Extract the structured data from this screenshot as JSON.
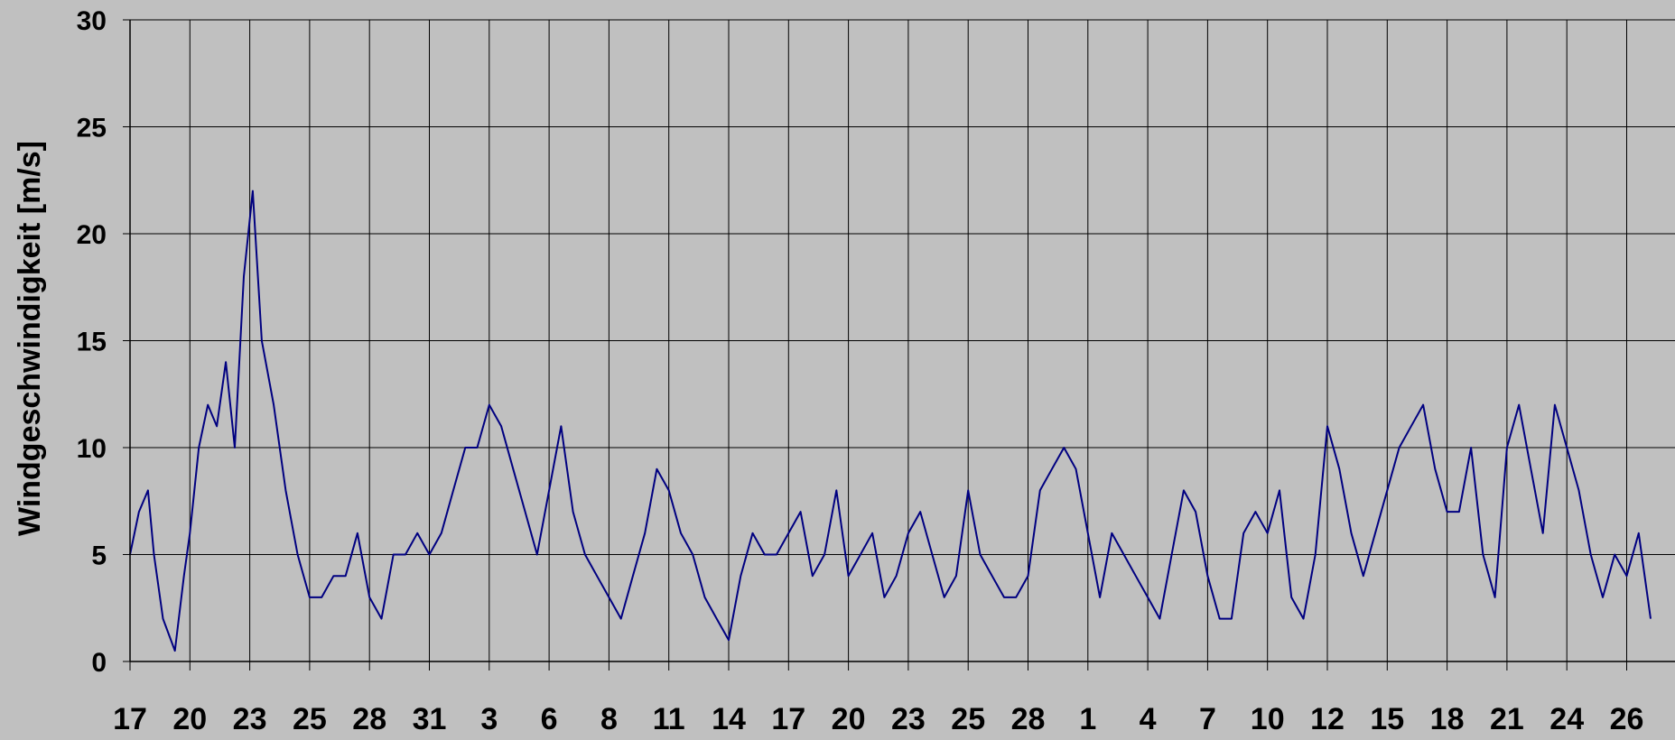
{
  "chart_data": {
    "type": "line",
    "title": "",
    "xlabel": "",
    "ylabel": "Windgeschwindigkeit [m/s]",
    "ylim": [
      0,
      30
    ],
    "yticks": [
      0,
      5,
      10,
      15,
      20,
      25,
      30
    ],
    "x_tick_labels": [
      "17",
      "20",
      "23",
      "25",
      "28",
      "31",
      "3",
      "6",
      "8",
      "11",
      "14",
      "17",
      "20",
      "23",
      "25",
      "28",
      "1",
      "4",
      "7",
      "10",
      "12",
      "15",
      "18",
      "21",
      "24",
      "26"
    ],
    "grid": true,
    "legend": "none",
    "series": [
      {
        "color": "#000080",
        "tick_index": [
          0,
          0.15,
          0.3,
          0.4,
          0.55,
          0.75,
          0.9,
          1.0,
          1.15,
          1.3,
          1.45,
          1.6,
          1.75,
          1.9,
          2.05,
          2.2,
          2.4,
          2.6,
          2.8,
          3.0,
          3.2,
          3.4,
          3.6,
          3.8,
          4.0,
          4.2,
          4.4,
          4.6,
          4.8,
          5.0,
          5.2,
          5.4,
          5.6,
          5.8,
          6.0,
          6.2,
          6.4,
          6.6,
          6.8,
          7.0,
          7.2,
          7.4,
          7.6,
          7.8,
          8.0,
          8.2,
          8.4,
          8.6,
          8.8,
          9.0,
          9.2,
          9.4,
          9.6,
          9.8,
          10.0,
          10.2,
          10.4,
          10.6,
          10.8,
          11.0,
          11.2,
          11.4,
          11.6,
          11.8,
          12.0,
          12.2,
          12.4,
          12.6,
          12.8,
          13.0,
          13.2,
          13.4,
          13.6,
          13.8,
          14.0,
          14.2,
          14.4,
          14.6,
          14.8,
          15.0,
          15.2,
          15.4,
          15.6,
          15.8,
          16.0,
          16.2,
          16.4,
          16.6,
          16.8,
          17.0,
          17.2,
          17.4,
          17.6,
          17.8,
          18.0,
          18.2,
          18.4,
          18.6,
          18.8,
          19.0,
          19.2,
          19.4,
          19.6,
          19.8,
          20.0,
          20.2,
          20.4,
          20.6,
          20.8,
          21.0,
          21.2,
          21.4,
          21.6,
          21.8,
          22.0,
          22.2,
          22.4,
          22.6,
          22.8,
          23.0,
          23.2,
          23.4,
          23.6,
          23.8,
          24.0,
          24.2,
          24.4,
          24.6,
          24.8,
          25.0,
          25.2,
          25.4,
          25.6,
          25.8
        ],
        "values": [
          5,
          7,
          8,
          5,
          2,
          0.5,
          4,
          6,
          10,
          12,
          11,
          14,
          10,
          18,
          22,
          15,
          12,
          8,
          5,
          3,
          3,
          4,
          4,
          6,
          3,
          2,
          5,
          5,
          6,
          5,
          6,
          8,
          10,
          10,
          12,
          11,
          9,
          7,
          5,
          8,
          11,
          7,
          5,
          4,
          3,
          2,
          4,
          6,
          9,
          8,
          6,
          5,
          3,
          2,
          1,
          4,
          6,
          5,
          5,
          6,
          7,
          4,
          5,
          8,
          4,
          5,
          6,
          3,
          4,
          6,
          7,
          5,
          3,
          4,
          8,
          5,
          4,
          3,
          3,
          4,
          8,
          9,
          10,
          9,
          6,
          3,
          6,
          5,
          4,
          3,
          2,
          5,
          8,
          7,
          4,
          2,
          2,
          6,
          7,
          6,
          8,
          3,
          2,
          5,
          11,
          9,
          6,
          4,
          6,
          8,
          10,
          11,
          12,
          9,
          7,
          7,
          10,
          5,
          3,
          10,
          12,
          9,
          6,
          12,
          10,
          8,
          5,
          3,
          5,
          4,
          6,
          2
        ]
      }
    ]
  }
}
